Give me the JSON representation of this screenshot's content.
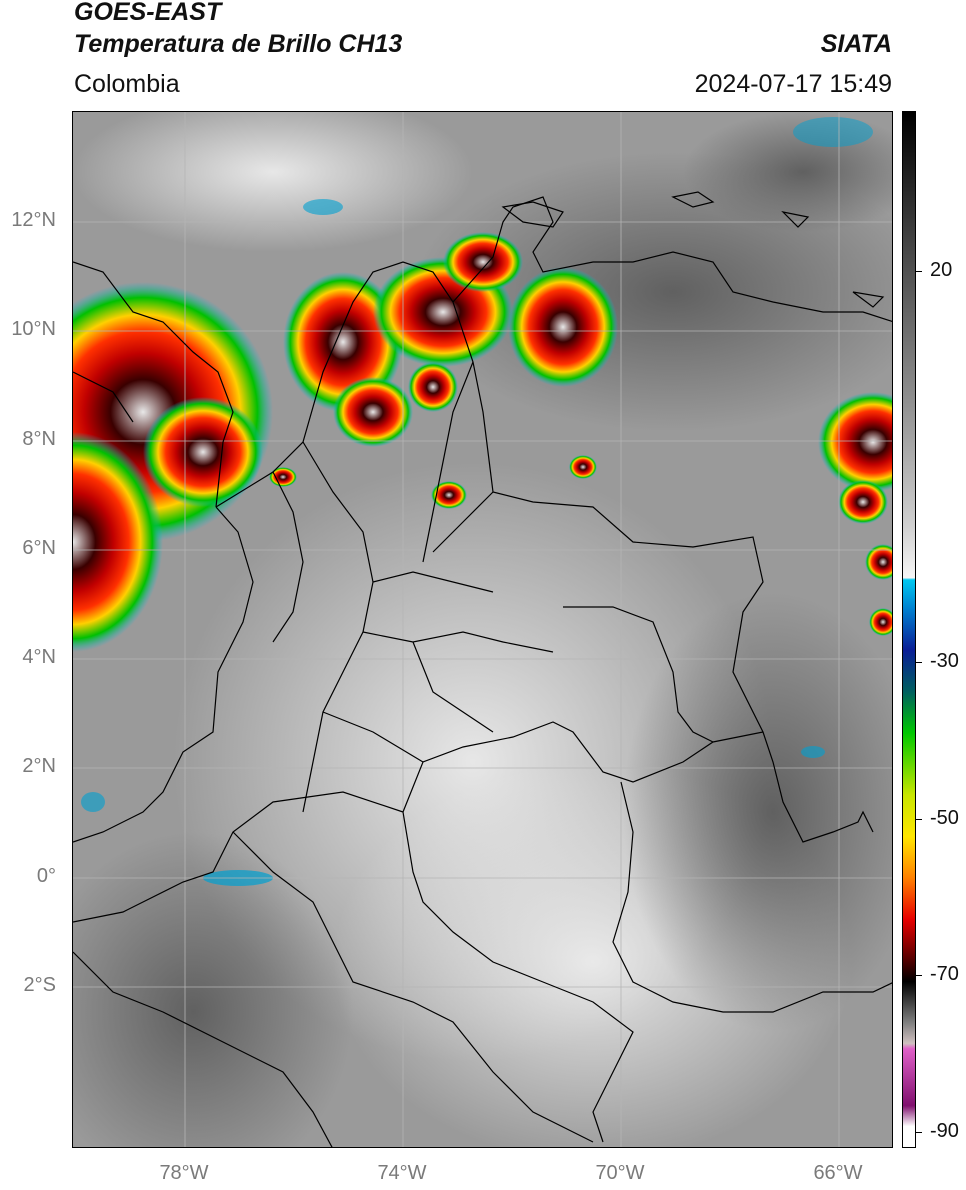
{
  "header": {
    "satellite": "GOES-EAST",
    "product": "Temperatura de Brillo CH13",
    "organization": "SIATA",
    "region": "Colombia",
    "datetime": "2024-07-17 15:49"
  },
  "map": {
    "lat_range": [
      -5,
      14
    ],
    "lon_range": [
      -80,
      -65
    ],
    "lat_ticks": [
      {
        "value": 12,
        "label": "12°N"
      },
      {
        "value": 10,
        "label": "10°N"
      },
      {
        "value": 8,
        "label": "8°N"
      },
      {
        "value": 6,
        "label": "6°N"
      },
      {
        "value": 4,
        "label": "4°N"
      },
      {
        "value": 2,
        "label": "2°N"
      },
      {
        "value": 0,
        "label": "0°"
      },
      {
        "value": -2,
        "label": "2°S"
      }
    ],
    "lon_ticks": [
      {
        "value": -78,
        "label": "78°W"
      },
      {
        "value": -74,
        "label": "74°W"
      },
      {
        "value": -70,
        "label": "70°W"
      },
      {
        "value": -66,
        "label": "66°W"
      }
    ],
    "gridlines": true
  },
  "colorbar": {
    "range": [
      -92,
      35
    ],
    "ticks": [
      {
        "value": 20,
        "label": "20"
      },
      {
        "value": -30,
        "label": "-30"
      },
      {
        "value": -50,
        "label": "-50"
      },
      {
        "value": -70,
        "label": "-70"
      },
      {
        "value": -90,
        "label": "-90"
      }
    ],
    "colors": {
      "warm_top": "#000000",
      "cold_cyan": "#00c8f0",
      "cold_blue": "#0a1e96",
      "cold_green": "#00c800",
      "cold_yellow": "#ffe600",
      "cold_red": "#e60000",
      "cold_darkred": "#500000",
      "coldest_magenta": "#e060c8",
      "coldest_purple": "#80106e"
    }
  }
}
